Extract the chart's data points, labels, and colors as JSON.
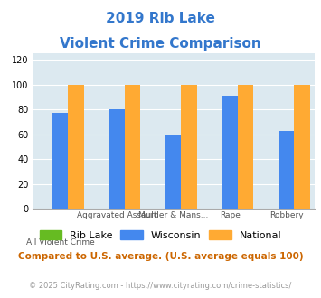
{
  "title_line1": "2019 Rib Lake",
  "title_line2": "Violent Crime Comparison",
  "title_color": "#3377cc",
  "rib_lake": [
    0,
    0,
    0,
    0,
    0
  ],
  "wisconsin": [
    77,
    80,
    60,
    91,
    63
  ],
  "national": [
    100,
    100,
    100,
    100,
    100
  ],
  "rib_lake_color": "#66bb22",
  "wisconsin_color": "#4488ee",
  "national_color": "#ffaa33",
  "ylim": [
    0,
    125
  ],
  "yticks": [
    0,
    20,
    40,
    60,
    80,
    100,
    120
  ],
  "bg_color": "#dce9f0",
  "legend_note": "Compared to U.S. average. (U.S. average equals 100)",
  "footer_part1": "© 2025 CityRating.com - ",
  "footer_part2": "https://www.cityrating.com/crime-statistics/",
  "legend_note_color": "#cc6600",
  "footer_color": "#999999",
  "footer_link_color": "#4488cc",
  "bar_width": 0.28,
  "group_positions": [
    0,
    1,
    2,
    3,
    4
  ],
  "top_labels": [
    "",
    "Aggravated Assault",
    "Murder & Mans...",
    "Rape",
    "Robbery"
  ],
  "bottom_labels": [
    "All Violent Crime",
    "",
    "",
    "",
    ""
  ]
}
